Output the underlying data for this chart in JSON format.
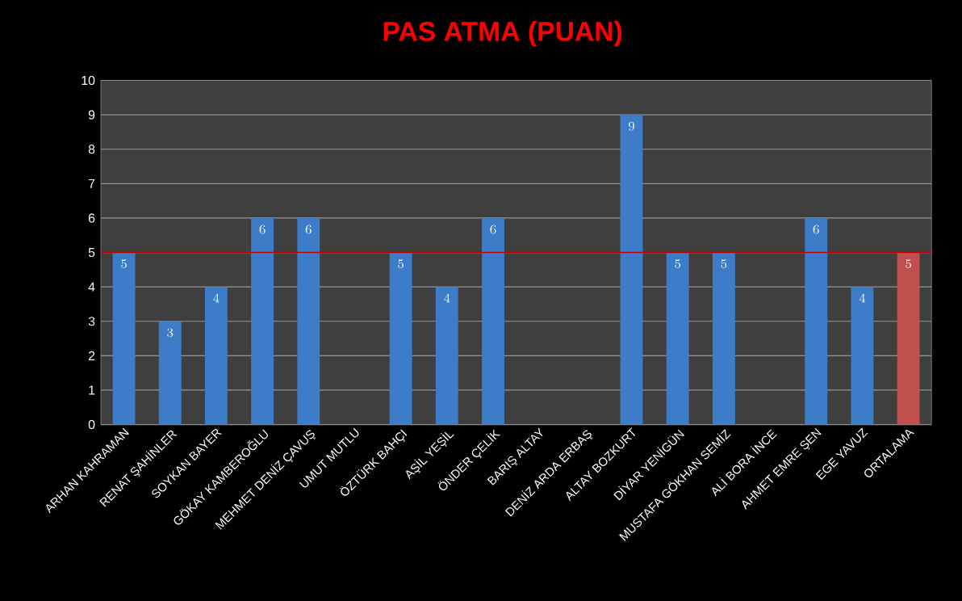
{
  "chart_data": {
    "type": "bar",
    "title": "PAS ATMA (PUAN)",
    "categories": [
      "ARHAN KAHRAMAN",
      "RENAT ŞAHİNLER",
      "SOYKAN BAYER",
      "GÖKAY KAMBEROĞLU",
      "MEHMET DENİZ ÇAVUŞ",
      "UMUT MUTLU",
      "ÖZTÜRK BAHÇI",
      "AŞİL YEŞİL",
      "ÖNDER ÇELİK",
      "BARIŞ ALTAY",
      "DENİZ ARDA ERBAŞ",
      "ALTAY BOZKURT",
      "DİYAR YENİGÜN",
      "MUSTAFA GÖKHAN SEMİZ",
      "ALİ BORA İNCE",
      "AHMET EMRE ŞEN",
      "EGE YAVUZ",
      "ORTALAMA"
    ],
    "values": [
      5,
      3,
      4,
      6,
      6,
      null,
      5,
      4,
      6,
      null,
      null,
      9,
      5,
      5,
      null,
      6,
      4,
      5
    ],
    "colors": [
      "#3d7cc9",
      "#3d7cc9",
      "#3d7cc9",
      "#3d7cc9",
      "#3d7cc9",
      "#3d7cc9",
      "#3d7cc9",
      "#3d7cc9",
      "#3d7cc9",
      "#3d7cc9",
      "#3d7cc9",
      "#3d7cc9",
      "#3d7cc9",
      "#3d7cc9",
      "#3d7cc9",
      "#3d7cc9",
      "#3d7cc9",
      "#c0504d"
    ],
    "ylim": [
      0,
      10
    ],
    "yticks": [
      0,
      1,
      2,
      3,
      4,
      5,
      6,
      7,
      8,
      9,
      10
    ],
    "grid": "y",
    "data_labels": true,
    "ref_lines": [
      {
        "axis": "y",
        "value": 5,
        "color": "#c00000"
      }
    ]
  }
}
